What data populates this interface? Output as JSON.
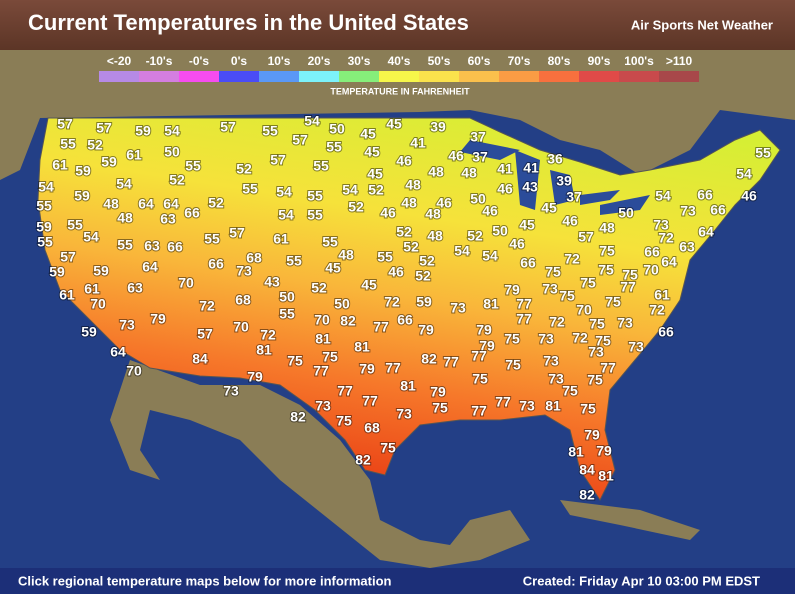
{
  "header": {
    "title": "Current Temperatures in the United States",
    "brand": "Air Sports Net Weather"
  },
  "legend": {
    "items": [
      {
        "label": "<-20",
        "color": "#b68ae6"
      },
      {
        "label": "-10's",
        "color": "#d47ee0"
      },
      {
        "label": "-0's",
        "color": "#f64cf0"
      },
      {
        "label": "0's",
        "color": "#4a4cf6"
      },
      {
        "label": "10's",
        "color": "#5a98f6"
      },
      {
        "label": "20's",
        "color": "#7cf2fa"
      },
      {
        "label": "30's",
        "color": "#86ee7a"
      },
      {
        "label": "40's",
        "color": "#f6f64a"
      },
      {
        "label": "50's",
        "color": "#fae24c"
      },
      {
        "label": "60's",
        "color": "#fac04c"
      },
      {
        "label": "70's",
        "color": "#fa9c44"
      },
      {
        "label": "80's",
        "color": "#f8703e"
      },
      {
        "label": "90's",
        "color": "#e04a48"
      },
      {
        "label": "100's",
        "color": "#c84a4c"
      },
      {
        "label": ">110",
        "color": "#a8484a"
      }
    ],
    "caption": "TEMPERATURE IN FAHRENHEIT"
  },
  "temperatures": [
    57,
    57,
    59,
    54,
    57,
    55,
    54,
    50,
    45,
    45,
    39,
    55,
    52,
    61,
    50,
    57,
    55,
    45,
    41,
    37,
    61,
    59,
    59,
    55,
    52,
    57,
    55,
    46,
    46,
    37,
    36,
    55,
    54,
    54,
    52,
    45,
    48,
    48,
    41,
    41,
    54,
    46,
    55,
    59,
    48,
    64,
    64,
    55,
    54,
    55,
    54,
    52,
    48,
    50,
    46,
    43,
    39,
    37,
    48,
    63,
    66,
    52,
    54,
    55,
    52,
    46,
    48,
    46,
    46,
    45,
    46,
    54,
    66,
    66,
    73,
    50,
    59,
    55,
    54,
    48,
    57,
    48,
    73,
    55,
    55,
    63,
    66,
    55,
    57,
    61,
    55,
    48,
    52,
    48,
    52,
    50,
    45,
    46,
    54,
    54,
    72,
    64,
    63,
    75,
    66,
    57,
    66,
    73,
    68,
    55,
    45,
    55,
    52,
    52,
    46,
    66,
    75,
    72,
    64,
    70,
    59,
    59,
    64,
    70,
    43,
    50,
    52,
    45,
    52,
    75,
    75,
    75,
    61,
    61,
    63,
    70,
    72,
    68,
    50,
    72,
    59,
    73,
    81,
    79,
    73,
    75,
    77,
    61,
    75,
    70,
    55,
    70,
    82,
    77,
    66,
    79,
    77,
    77,
    72,
    75,
    73,
    72,
    79,
    73,
    59,
    57,
    70,
    72,
    81,
    81,
    79,
    79,
    75,
    73,
    72,
    75,
    66,
    73,
    64,
    81,
    75,
    82,
    77,
    75,
    73,
    73,
    77,
    84,
    75,
    77,
    79,
    77,
    77,
    81,
    73,
    75,
    75,
    70,
    79,
    73,
    77,
    79,
    75,
    75,
    77,
    73,
    81,
    75,
    73,
    77,
    73,
    77,
    82,
    75,
    68,
    79,
    81,
    79,
    84,
    81,
    82,
    75,
    82
  ],
  "footer": {
    "link": "Click regional temperature maps below for more information",
    "created": "Created: Friday Apr 10 03:00 PM EDST"
  }
}
